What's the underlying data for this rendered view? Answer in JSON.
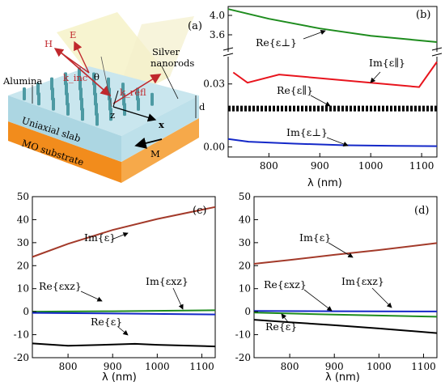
{
  "diagram": {
    "panel_label": "(a)",
    "labels": {
      "h_field": "H",
      "e_field": "E",
      "k_inc": "k_inc",
      "theta": "θ",
      "k_refl": "k_refl",
      "silver": "Silver",
      "nanorods": "nanorods",
      "alumina": "Alumina",
      "uniaxial": "Uniaxial slab",
      "mo_substrate": "MO substrate",
      "z_axis": "z",
      "x_axis": "x",
      "thickness": "d",
      "magnetization": "M"
    },
    "colors": {
      "slab_top": "#c6e3ec",
      "slab_front": "#a9d3e0",
      "substrate": "#f4942a",
      "rods": "#4d9aa3",
      "beam": "#f3f0c5",
      "arrow": "#c0282d"
    }
  },
  "chart_data": [
    {
      "panel": "(b)",
      "type": "line",
      "xlabel": "λ (nm)",
      "x_ticks": [
        800,
        900,
        1000,
        1100
      ],
      "xlim": [
        720,
        1130
      ],
      "broken_y_axis": true,
      "upper_ylim": [
        3.35,
        4.15
      ],
      "upper_ticks": [
        "4.0",
        "3.6"
      ],
      "lower_ylim": [
        -0.004,
        0.043
      ],
      "lower_ticks": [
        "0.03",
        "0.00"
      ],
      "series": [
        {
          "name": "Re{ε⊥}",
          "axis": "upper",
          "color": "#1e8c1e",
          "style": "solid",
          "x": [
            720,
            800,
            900,
            1000,
            1130
          ],
          "y": [
            4.13,
            3.93,
            3.73,
            3.58,
            3.45
          ]
        },
        {
          "name": "Im{ε∥}",
          "axis": "lower",
          "color": "#e8141d",
          "style": "solid",
          "x": [
            730,
            758,
            820,
            1095,
            1130
          ],
          "y": [
            0.0355,
            0.0306,
            0.0345,
            0.0285,
            0.0405
          ]
        },
        {
          "name": "Re{ε∥}",
          "axis": "lower",
          "color": "#000000",
          "style": "dashed-band",
          "x": [
            720,
            1130
          ],
          "y": [
            0.0183,
            0.0183
          ]
        },
        {
          "name": "Im{ε⊥}",
          "axis": "lower",
          "color": "#1428c8",
          "style": "solid",
          "x": [
            720,
            760,
            850,
            950,
            1050,
            1130
          ],
          "y": [
            0.0038,
            0.0025,
            0.0016,
            0.0008,
            0.0005,
            0.0004
          ]
        }
      ],
      "annotations": [
        "Re{ε⊥}",
        "Im{ε∥}",
        "Re{ε∥}",
        "Im{ε⊥}"
      ]
    },
    {
      "panel": "(c)",
      "type": "line",
      "xlabel": "λ (nm)",
      "x_ticks": [
        800,
        900,
        1000,
        1100
      ],
      "xlim": [
        720,
        1130
      ],
      "ylim": [
        -20,
        50
      ],
      "y_ticks": [
        -20,
        -10,
        0,
        10,
        20,
        30,
        40,
        50
      ],
      "series": [
        {
          "name": "Im{ε}",
          "color": "#a33a2a",
          "x": [
            720,
            800,
            900,
            1000,
            1130
          ],
          "y": [
            23.8,
            29.5,
            35.5,
            40.3,
            45.5
          ]
        },
        {
          "name": "Re{εxz} (green)",
          "color": "#1e8c1e",
          "x": [
            720,
            900,
            1130
          ],
          "y": [
            0.0,
            0.2,
            0.6
          ]
        },
        {
          "name": "Im{εxz} (blue)",
          "color": "#1428c8",
          "x": [
            720,
            900,
            1130
          ],
          "y": [
            -0.5,
            -0.8,
            -1.2
          ]
        },
        {
          "name": "Re{ε}",
          "color": "#000000",
          "x": [
            720,
            800,
            900,
            950,
            1000,
            1130
          ],
          "y": [
            -13.8,
            -14.8,
            -14.3,
            -14.0,
            -14.4,
            -15.1
          ]
        }
      ],
      "annotations": [
        "Im{ε}",
        "Re{εxz}",
        "Im{εxz}",
        "Re{ε}"
      ]
    },
    {
      "panel": "(d)",
      "type": "line",
      "xlabel": "λ (nm)",
      "x_ticks": [
        800,
        900,
        1000,
        1100
      ],
      "xlim": [
        720,
        1130
      ],
      "ylim": [
        -20,
        50
      ],
      "y_ticks": [
        -20,
        -10,
        0,
        10,
        20,
        30,
        40,
        50
      ],
      "series": [
        {
          "name": "Im{ε}",
          "color": "#a33a2a",
          "x": [
            720,
            800,
            900,
            1000,
            1130
          ],
          "y": [
            20.8,
            22.5,
            24.7,
            26.8,
            29.8
          ]
        },
        {
          "name": "Im{εxz} (blue)",
          "color": "#1428c8",
          "x": [
            720,
            900,
            1130
          ],
          "y": [
            0.3,
            0.2,
            0.1
          ]
        },
        {
          "name": "Re{εxz} (green)",
          "color": "#1e8c1e",
          "x": [
            720,
            900,
            1130
          ],
          "y": [
            -0.4,
            -1.3,
            -2.2
          ]
        },
        {
          "name": "Re{ε}",
          "color": "#000000",
          "x": [
            720,
            800,
            900,
            1000,
            1130
          ],
          "y": [
            -3.5,
            -4.6,
            -5.9,
            -7.3,
            -9.3
          ]
        }
      ],
      "annotations": [
        "Im{ε}",
        "Re{εxz}",
        "Im{εxz}",
        "Re{ε}"
      ]
    }
  ]
}
